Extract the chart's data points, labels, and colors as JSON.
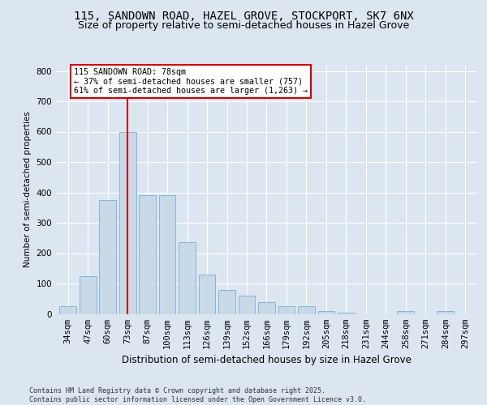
{
  "title1": "115, SANDOWN ROAD, HAZEL GROVE, STOCKPORT, SK7 6NX",
  "title2": "Size of property relative to semi-detached houses in Hazel Grove",
  "xlabel": "Distribution of semi-detached houses by size in Hazel Grove",
  "ylabel": "Number of semi-detached properties",
  "categories": [
    "34sqm",
    "47sqm",
    "60sqm",
    "73sqm",
    "87sqm",
    "100sqm",
    "113sqm",
    "126sqm",
    "139sqm",
    "152sqm",
    "166sqm",
    "179sqm",
    "192sqm",
    "205sqm",
    "218sqm",
    "231sqm",
    "244sqm",
    "258sqm",
    "271sqm",
    "284sqm",
    "297sqm"
  ],
  "values": [
    25,
    125,
    375,
    600,
    390,
    390,
    235,
    130,
    80,
    60,
    40,
    25,
    25,
    10,
    5,
    0,
    0,
    10,
    0,
    10,
    0
  ],
  "bar_color": "#c9d9e8",
  "bar_edge_color": "#7bafd4",
  "vline_x": 3,
  "annotation_text": "115 SANDOWN ROAD: 78sqm\n← 37% of semi-detached houses are smaller (757)\n61% of semi-detached houses are larger (1,263) →",
  "annotation_box_color": "#ffffff",
  "annotation_box_edge_color": "#cc0000",
  "vline_color": "#cc0000",
  "fig_bg_color": "#dce6f0",
  "plot_bg_color": "#dce6f0",
  "footer_text": "Contains HM Land Registry data © Crown copyright and database right 2025.\nContains public sector information licensed under the Open Government Licence v3.0.",
  "ylim": [
    0,
    820
  ],
  "yticks": [
    0,
    100,
    200,
    300,
    400,
    500,
    600,
    700,
    800
  ],
  "title1_fontsize": 10,
  "title2_fontsize": 9,
  "xlabel_fontsize": 8.5,
  "ylabel_fontsize": 7.5,
  "tick_fontsize": 7.5,
  "footer_fontsize": 6.0
}
